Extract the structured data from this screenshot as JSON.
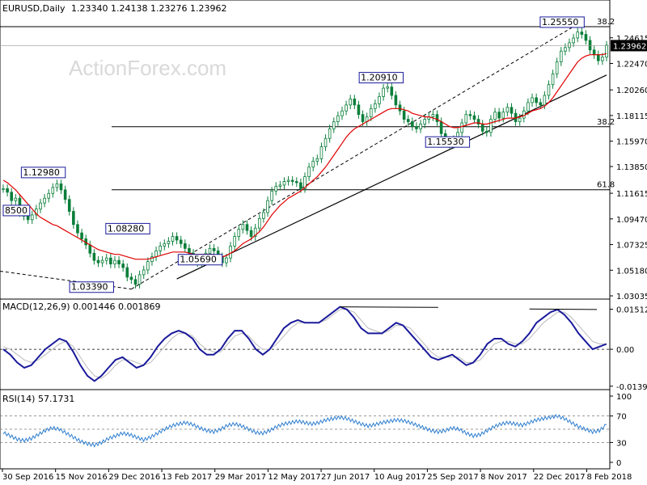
{
  "window": {
    "title": "EURUSD,Daily",
    "ohlc": "1.23340 1.24138 1.23276 1.23962",
    "watermark": "ActionForex.com"
  },
  "colors": {
    "candle": "#0b7f3a",
    "ma": "#e00000",
    "macd": "#1a1a9c",
    "signal": "#bbbbbb",
    "rsi": "#2f7fd0",
    "line": "#000000",
    "label_border": "#1a1a9c",
    "price_tag_bg": "#000000"
  },
  "chart_data": [
    {
      "type": "candlestick",
      "name": "main",
      "ylim": [
        1.03035,
        1.2656
      ],
      "ticks_y": [
        "1.24615",
        "1.22470",
        "1.20260",
        "1.18115",
        "1.15970",
        "1.13850",
        "1.11615",
        "1.09470",
        "1.07325",
        "1.05180",
        "1.03035"
      ],
      "current_price": "1.23962",
      "x_labels": [
        "30 Sep 2016",
        "15 Nov 2016",
        "29 Dec 2016",
        "13 Feb 2017",
        "29 Mar 2017",
        "12 May 2017",
        "27 Jun 2017",
        "10 Aug 2017",
        "25 Sep 2017",
        "8 Nov 2017",
        "22 Dec 2017",
        "8 Feb 2018"
      ],
      "close_series": [
        1.12,
        1.117,
        1.11,
        1.112,
        1.1,
        1.097,
        1.094,
        1.098,
        1.103,
        1.108,
        1.112,
        1.116,
        1.121,
        1.124,
        1.119,
        1.111,
        1.101,
        1.09,
        1.083,
        1.078,
        1.073,
        1.066,
        1.06,
        1.058,
        1.06,
        1.062,
        1.057,
        1.06,
        1.057,
        1.054,
        1.046,
        1.044,
        1.04,
        1.048,
        1.052,
        1.059,
        1.063,
        1.068,
        1.072,
        1.074,
        1.076,
        1.08,
        1.077,
        1.074,
        1.07,
        1.066,
        1.06,
        1.058,
        1.062,
        1.066,
        1.07,
        1.068,
        1.063,
        1.058,
        1.062,
        1.072,
        1.08,
        1.086,
        1.09,
        1.085,
        1.08,
        1.087,
        1.095,
        1.1,
        1.11,
        1.118,
        1.122,
        1.123,
        1.126,
        1.127,
        1.126,
        1.125,
        1.12,
        1.13,
        1.138,
        1.143,
        1.145,
        1.155,
        1.162,
        1.17,
        1.176,
        1.181,
        1.185,
        1.19,
        1.195,
        1.19,
        1.182,
        1.176,
        1.18,
        1.187,
        1.191,
        1.197,
        1.204,
        1.205,
        1.198,
        1.19,
        1.185,
        1.178,
        1.176,
        1.172,
        1.17,
        1.174,
        1.178,
        1.18,
        1.182,
        1.176,
        1.166,
        1.16,
        1.157,
        1.161,
        1.167,
        1.175,
        1.182,
        1.181,
        1.178,
        1.174,
        1.168,
        1.167,
        1.178,
        1.184,
        1.179,
        1.184,
        1.188,
        1.183,
        1.176,
        1.179,
        1.185,
        1.192,
        1.196,
        1.192,
        1.19,
        1.198,
        1.207,
        1.216,
        1.226,
        1.235,
        1.238,
        1.242,
        1.246,
        1.251,
        1.249,
        1.244,
        1.236,
        1.232,
        1.227,
        1.23,
        1.24
      ],
      "ma_series": [
        1.127,
        1.125,
        1.122,
        1.119,
        1.115,
        1.111,
        1.107,
        1.103,
        1.099,
        1.096,
        1.094,
        1.092,
        1.09,
        1.089,
        1.087,
        1.085,
        1.083,
        1.081,
        1.079,
        1.077,
        1.075,
        1.073,
        1.071,
        1.069,
        1.068,
        1.067,
        1.066,
        1.065,
        1.065,
        1.064,
        1.063,
        1.062,
        1.061,
        1.061,
        1.061,
        1.061,
        1.062,
        1.063,
        1.064,
        1.065,
        1.066,
        1.067,
        1.067,
        1.067,
        1.067,
        1.066,
        1.065,
        1.065,
        1.065,
        1.065,
        1.065,
        1.065,
        1.064,
        1.063,
        1.064,
        1.066,
        1.068,
        1.071,
        1.074,
        1.076,
        1.078,
        1.081,
        1.084,
        1.088,
        1.093,
        1.098,
        1.102,
        1.106,
        1.109,
        1.112,
        1.114,
        1.116,
        1.118,
        1.121,
        1.124,
        1.127,
        1.13,
        1.134,
        1.138,
        1.143,
        1.148,
        1.153,
        1.158,
        1.163,
        1.167,
        1.17,
        1.172,
        1.174,
        1.176,
        1.178,
        1.18,
        1.182,
        1.184,
        1.186,
        1.187,
        1.187,
        1.187,
        1.186,
        1.185,
        1.183,
        1.182,
        1.181,
        1.18,
        1.18,
        1.179,
        1.178,
        1.176,
        1.174,
        1.172,
        1.171,
        1.171,
        1.172,
        1.173,
        1.174,
        1.175,
        1.175,
        1.174,
        1.174,
        1.175,
        1.176,
        1.177,
        1.178,
        1.179,
        1.179,
        1.179,
        1.18,
        1.181,
        1.183,
        1.185,
        1.186,
        1.187,
        1.189,
        1.192,
        1.196,
        1.201,
        1.206,
        1.211,
        1.216,
        1.221,
        1.226,
        1.229,
        1.231,
        1.232,
        1.232,
        1.232,
        1.232,
        1.233
      ],
      "fib_lines": [
        {
          "price": 1.2555,
          "label": "38.2"
        },
        {
          "price": 1.1718,
          "label": "38.2"
        },
        {
          "price": 1.1191,
          "label": "61.8"
        }
      ],
      "annotations": [
        {
          "text": "1.12980",
          "price": 1.1298,
          "pos": 0.03
        },
        {
          "text": "8500",
          "price": 1.098,
          "pos": 0.0
        },
        {
          "text": "1.08280",
          "price": 1.0828,
          "pos": 0.17
        },
        {
          "text": "1.03390",
          "price": 1.0339,
          "pos": 0.11
        },
        {
          "text": "1.05690",
          "price": 1.0569,
          "pos": 0.29
        },
        {
          "text": "1.20910",
          "price": 1.2091,
          "pos": 0.59
        },
        {
          "text": "1.15530",
          "price": 1.1553,
          "pos": 0.7
        },
        {
          "text": "1.25550",
          "price": 1.2555,
          "pos": 0.89
        }
      ]
    },
    {
      "type": "line",
      "name": "MACD",
      "label": "MACD(12,26,9) 0.001446 0.001869",
      "ylim": [
        -0.014,
        0.0165
      ],
      "ticks_y": [
        "0.01512",
        "0.00",
        "-0.01393"
      ],
      "macd_series": [
        0.0,
        -0.002,
        -0.005,
        -0.007,
        -0.006,
        -0.003,
        0.0,
        0.002,
        0.004,
        0.003,
        -0.001,
        -0.006,
        -0.01,
        -0.012,
        -0.01,
        -0.007,
        -0.004,
        -0.003,
        -0.005,
        -0.007,
        -0.006,
        -0.003,
        0.001,
        0.004,
        0.006,
        0.007,
        0.006,
        0.004,
        0.0,
        -0.002,
        -0.002,
        0.0,
        0.004,
        0.007,
        0.007,
        0.004,
        0.0,
        -0.002,
        0.0,
        0.004,
        0.008,
        0.01,
        0.011,
        0.01,
        0.01,
        0.01,
        0.012,
        0.014,
        0.016,
        0.015,
        0.012,
        0.008,
        0.006,
        0.006,
        0.006,
        0.008,
        0.01,
        0.009,
        0.006,
        0.003,
        0.0,
        -0.003,
        -0.004,
        -0.003,
        -0.002,
        -0.004,
        -0.006,
        -0.005,
        -0.002,
        0.002,
        0.004,
        0.004,
        0.002,
        0.001,
        0.003,
        0.006,
        0.01,
        0.012,
        0.014,
        0.015,
        0.013,
        0.01,
        0.006,
        0.003,
        0.0,
        0.001,
        0.002
      ],
      "signal_series": [
        0.001,
        0.0,
        -0.002,
        -0.004,
        -0.005,
        -0.004,
        -0.002,
        0.0,
        0.002,
        0.003,
        0.001,
        -0.003,
        -0.007,
        -0.01,
        -0.011,
        -0.009,
        -0.006,
        -0.004,
        -0.004,
        -0.005,
        -0.006,
        -0.005,
        -0.002,
        0.001,
        0.004,
        0.006,
        0.006,
        0.005,
        0.002,
        0.0,
        -0.001,
        -0.001,
        0.002,
        0.005,
        0.006,
        0.005,
        0.002,
        0.0,
        0.0,
        0.002,
        0.005,
        0.008,
        0.01,
        0.01,
        0.01,
        0.01,
        0.011,
        0.013,
        0.015,
        0.015,
        0.014,
        0.011,
        0.008,
        0.007,
        0.006,
        0.007,
        0.009,
        0.009,
        0.008,
        0.005,
        0.002,
        -0.001,
        -0.003,
        -0.003,
        -0.003,
        -0.003,
        -0.005,
        -0.005,
        -0.004,
        -0.001,
        0.002,
        0.003,
        0.003,
        0.002,
        0.002,
        0.004,
        0.007,
        0.01,
        0.012,
        0.014,
        0.014,
        0.012,
        0.009,
        0.006,
        0.003,
        0.002,
        0.002
      ]
    },
    {
      "type": "line",
      "name": "RSI",
      "label": "RSI(14) 57.1731",
      "ylim": [
        0,
        100
      ],
      "ticks_y": [
        "100",
        "70",
        "30",
        "0"
      ],
      "levels": [
        70,
        50,
        30
      ],
      "rsi_series": [
        45,
        40,
        35,
        33,
        36,
        42,
        48,
        52,
        50,
        44,
        38,
        32,
        28,
        26,
        30,
        36,
        40,
        44,
        42,
        38,
        34,
        38,
        44,
        50,
        55,
        58,
        60,
        57,
        52,
        48,
        46,
        50,
        56,
        58,
        55,
        50,
        45,
        44,
        48,
        54,
        58,
        60,
        62,
        60,
        58,
        60,
        64,
        66,
        68,
        66,
        62,
        58,
        55,
        57,
        60,
        62,
        64,
        63,
        60,
        56,
        52,
        48,
        46,
        48,
        52,
        50,
        44,
        40,
        42,
        48,
        54,
        58,
        60,
        58,
        56,
        60,
        64,
        66,
        68,
        70,
        66,
        60,
        54,
        50,
        46,
        48,
        57
      ]
    }
  ]
}
